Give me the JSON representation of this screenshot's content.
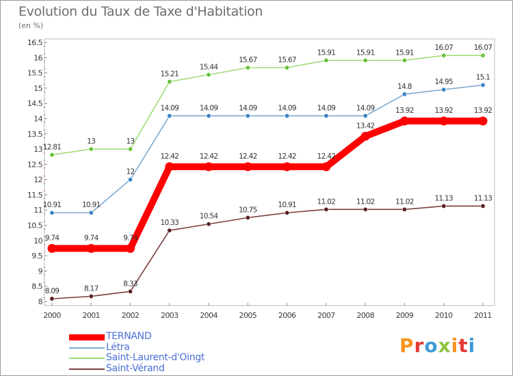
{
  "title": "Evolution du Taux de Taxe d'Habitation",
  "subtitle": "(en %)",
  "logo": {
    "text": "Proxiti",
    "colors": [
      "#f7941d",
      "#e53935",
      "#3c9bd6",
      "#8dc63f",
      "#f7941d",
      "#e53935",
      "#3c9bd6"
    ]
  },
  "chart_data": {
    "type": "line",
    "title": "Evolution du Taux de Taxe d'Habitation",
    "subtitle": "(en %)",
    "xlabel": "",
    "ylabel": "",
    "x": [
      "2000",
      "2001",
      "2002",
      "2003",
      "2004",
      "2005",
      "2006",
      "2007",
      "2008",
      "2009",
      "2010",
      "2011"
    ],
    "ylim": [
      8,
      16.5
    ],
    "yticks": [
      "8",
      "8.5",
      "9",
      "9.5",
      "10",
      "10.5",
      "11",
      "11.5",
      "12",
      "12.5",
      "13",
      "13.5",
      "14",
      "14.5",
      "15",
      "15.5",
      "16",
      "16.5"
    ],
    "grid": false,
    "legend_position": "bottom-left",
    "series": [
      {
        "name": "TERNAND",
        "color": "#ff0000",
        "values": [
          9.74,
          9.74,
          9.74,
          12.42,
          12.42,
          12.42,
          12.42,
          12.42,
          13.42,
          13.92,
          13.92,
          13.92
        ],
        "labels": [
          "9.74",
          "9.74",
          "9.74",
          "12.42",
          "12.42",
          "12.42",
          "12.42",
          "12.42",
          "13.42",
          "13.92",
          "13.92",
          "13.92"
        ]
      },
      {
        "name": "Létra",
        "color": "#7fa8cf",
        "marker": "#3d83c4",
        "values": [
          10.91,
          10.91,
          12,
          14.09,
          14.09,
          14.09,
          14.09,
          14.09,
          14.09,
          14.8,
          14.95,
          15.1
        ],
        "labels": [
          "10.91",
          "10.91",
          "12",
          "14.09",
          "14.09",
          "14.09",
          "14.09",
          "14.09",
          "14.09",
          "14.8",
          "14.95",
          "15.1"
        ]
      },
      {
        "name": "Saint-Laurent-d'Oingt",
        "color": "#9fdc78",
        "marker": "#66c23a",
        "values": [
          12.81,
          13,
          13,
          15.21,
          15.44,
          15.67,
          15.67,
          15.91,
          15.91,
          15.91,
          16.07,
          16.07
        ],
        "labels": [
          "12.81",
          "13",
          "13",
          "15.21",
          "15.44",
          "15.67",
          "15.67",
          "15.91",
          "15.91",
          "15.91",
          "16.07",
          "16.07"
        ]
      },
      {
        "name": "Saint-Vérand",
        "color": "#7a3b3b",
        "marker": "#5a1e1e",
        "values": [
          8.09,
          8.17,
          8.33,
          10.33,
          10.54,
          10.75,
          10.91,
          11.02,
          11.02,
          11.02,
          11.13,
          11.13
        ],
        "labels": [
          "8.09",
          "8.17",
          "8.33",
          "10.33",
          "10.54",
          "10.75",
          "10.91",
          "11.02",
          "11.02",
          "11.02",
          "11.13",
          "11.13"
        ]
      }
    ]
  }
}
